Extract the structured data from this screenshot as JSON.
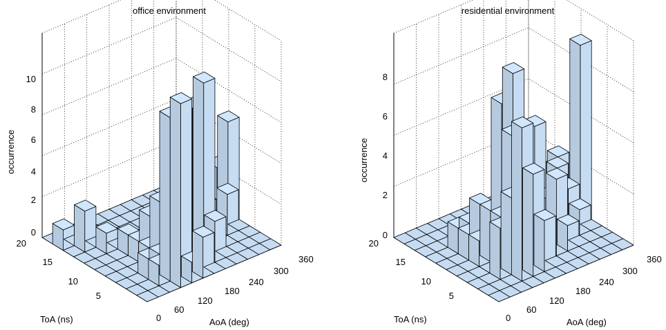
{
  "charts": [
    {
      "title": "office environment",
      "zlabel": "occurrence",
      "xlabel": "AoA (deg)",
      "ylabel": "ToA (ns)",
      "zmax": 10,
      "zticks": [
        "0",
        "2",
        "4",
        "6",
        "8",
        "10"
      ],
      "xticks": [
        "0",
        "60",
        "120",
        "180",
        "240",
        "300",
        "360"
      ],
      "yticks": [
        "5",
        "10",
        "15",
        "20"
      ]
    },
    {
      "title": "residential environment",
      "zlabel": "occurrence",
      "xlabel": "AoA (deg)",
      "ylabel": "ToA (ns)",
      "zmax": 8,
      "zticks": [
        "0",
        "2",
        "4",
        "6",
        "8"
      ],
      "xticks": [
        "0",
        "60",
        "120",
        "180",
        "240",
        "300",
        "360"
      ],
      "yticks": [
        "5",
        "10",
        "15",
        "20"
      ]
    }
  ],
  "chart_data": [
    {
      "type": "bar3d",
      "title": "office environment",
      "xlabel": "AoA (deg)",
      "ylabel": "ToA (ns)",
      "zlabel": "occurrence",
      "xlim": [
        0,
        360
      ],
      "ylim": [
        0,
        20
      ],
      "zlim": [
        0,
        10
      ],
      "bar_color": "#c6dcf2",
      "x_bins_deg": [
        0,
        30,
        60,
        90,
        120,
        150,
        180,
        210,
        240,
        270,
        300,
        330
      ],
      "y_bins_ns": [
        20,
        18,
        16,
        14,
        12,
        10,
        8,
        6,
        4,
        2
      ],
      "heights": [
        [
          0,
          0,
          0,
          0,
          0,
          0,
          0,
          0,
          0,
          0,
          0,
          0
        ],
        [
          1,
          0,
          0,
          0,
          0,
          0,
          0,
          0,
          0,
          0,
          0,
          0
        ],
        [
          0,
          2,
          0,
          0,
          0,
          0,
          0,
          0,
          0,
          0,
          0,
          0
        ],
        [
          0,
          0,
          1,
          0,
          0,
          0,
          0,
          0,
          0,
          0,
          0,
          0
        ],
        [
          0,
          0,
          0,
          1,
          0,
          0,
          0,
          1,
          1,
          1,
          1,
          0
        ],
        [
          0,
          0,
          0,
          1,
          2,
          0,
          1,
          0,
          0,
          2,
          3,
          5
        ],
        [
          0,
          0,
          0,
          1,
          3,
          1,
          4,
          2,
          2,
          0,
          2,
          0
        ],
        [
          0,
          0,
          1,
          1,
          5,
          1,
          6,
          1,
          0,
          0,
          0,
          0
        ],
        [
          0,
          0,
          1,
          8,
          6,
          8,
          9,
          2,
          0,
          0,
          0,
          0
        ],
        [
          0,
          0,
          0,
          9,
          1,
          2,
          0,
          0,
          0,
          0,
          0,
          0
        ]
      ]
    },
    {
      "type": "bar3d",
      "title": "residential environment",
      "xlabel": "AoA (deg)",
      "ylabel": "ToA (ns)",
      "zlabel": "occurrence",
      "xlim": [
        0,
        360
      ],
      "ylim": [
        0,
        20
      ],
      "zlim": [
        0,
        8
      ],
      "bar_color": "#c6dcf2",
      "x_bins_deg": [
        0,
        30,
        60,
        90,
        120,
        150,
        180,
        210,
        240,
        270,
        300,
        330
      ],
      "y_bins_ns": [
        20,
        18,
        16,
        14,
        12,
        10,
        8,
        6,
        4,
        2
      ],
      "heights": [
        [
          0,
          0,
          0,
          0,
          0,
          0,
          0,
          0,
          0,
          0,
          0,
          0
        ],
        [
          0,
          0,
          0,
          0,
          0,
          0,
          0,
          0,
          0,
          0,
          0,
          0
        ],
        [
          0,
          0,
          0,
          0,
          0,
          0,
          0,
          0,
          0,
          0,
          0,
          0
        ],
        [
          0,
          0,
          1,
          1,
          0,
          0,
          0,
          0,
          0,
          0,
          0,
          0
        ],
        [
          0,
          0,
          1,
          2,
          0,
          1,
          0,
          0,
          0,
          0,
          0,
          0
        ],
        [
          0,
          0,
          1,
          2,
          6,
          7,
          1,
          3,
          1,
          3,
          1,
          7
        ],
        [
          0,
          0,
          0,
          2,
          5,
          1,
          5,
          2,
          3,
          2,
          1,
          0
        ],
        [
          0,
          0,
          2,
          3,
          2,
          0,
          1,
          3,
          1,
          0,
          0,
          0
        ],
        [
          0,
          0,
          0,
          6,
          4,
          2,
          0,
          0,
          0,
          0,
          0,
          0
        ],
        [
          0,
          0,
          0,
          0,
          0,
          0,
          0,
          0,
          0,
          0,
          0,
          0
        ]
      ]
    }
  ]
}
